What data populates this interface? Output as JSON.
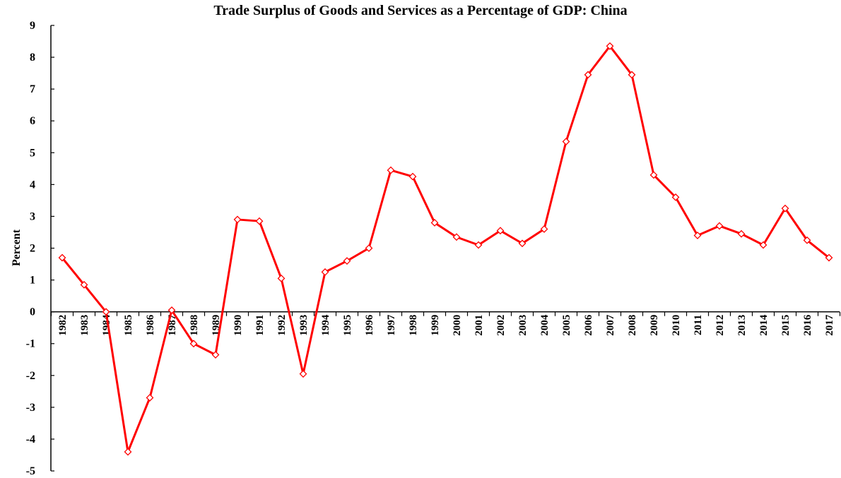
{
  "chart_data": {
    "type": "line",
    "title": "Trade Surplus of Goods and Services as a Percentage of GDP: China",
    "ylabel": "Percent",
    "xlabel": "",
    "ylim": [
      -5,
      9
    ],
    "yticks": [
      -5,
      -4,
      -3,
      -2,
      -1,
      0,
      1,
      2,
      3,
      4,
      5,
      6,
      7,
      8,
      9
    ],
    "categories": [
      "1982",
      "1983",
      "1984",
      "1985",
      "1986",
      "1987",
      "1988",
      "1989",
      "1990",
      "1991",
      "1992",
      "1993",
      "1994",
      "1995",
      "1996",
      "1997",
      "1998",
      "1999",
      "2000",
      "2001",
      "2002",
      "2003",
      "2004",
      "2005",
      "2006",
      "2007",
      "2008",
      "2009",
      "2010",
      "2011",
      "2012",
      "2013",
      "2014",
      "2015",
      "2016",
      "2017"
    ],
    "series": [
      {
        "color": "#ff0000",
        "values": [
          1.7,
          0.85,
          0.0,
          -4.4,
          -2.7,
          0.05,
          -1.0,
          -1.35,
          2.9,
          2.85,
          1.05,
          -1.95,
          1.25,
          1.6,
          2.0,
          4.45,
          4.25,
          2.8,
          2.35,
          2.1,
          2.55,
          2.15,
          2.6,
          5.35,
          7.45,
          8.35,
          7.45,
          4.3,
          3.6,
          2.4,
          2.7,
          2.45,
          2.1,
          3.25,
          2.25,
          1.7
        ]
      }
    ],
    "grid": false,
    "legend": "none"
  }
}
